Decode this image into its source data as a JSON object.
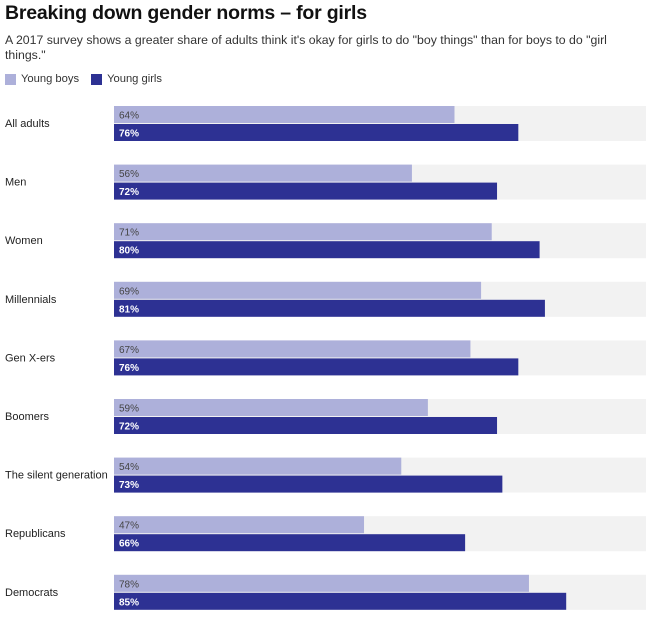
{
  "title": "Breaking down gender norms – for girls",
  "subtitle": "A 2017 survey shows a greater share of adults think it's okay for girls to do \"boy things\" than for boys to do \"girl things.\"",
  "colors": {
    "young_boys": "#adb0da",
    "young_girls": "#2d3193",
    "track": "#f2f2f2"
  },
  "chart_data": {
    "type": "bar",
    "orientation": "horizontal",
    "unit": "%",
    "xlim": [
      0,
      100
    ],
    "grid": false,
    "legend_position": "top-left",
    "categories": [
      "All adults",
      "Men",
      "Women",
      "Millennials",
      "Gen X-ers",
      "Boomers",
      "The silent generation",
      "Republicans",
      "Democrats"
    ],
    "series": [
      {
        "name": "Young boys",
        "values": [
          64,
          56,
          71,
          69,
          67,
          59,
          54,
          47,
          78
        ],
        "labels": [
          "64%",
          "56%",
          "71%",
          "69%",
          "67%",
          "59%",
          "54%",
          "47%",
          "78%"
        ]
      },
      {
        "name": "Young girls",
        "values": [
          76,
          72,
          80,
          81,
          76,
          72,
          73,
          66,
          85
        ],
        "labels": [
          "76%",
          "72%",
          "80%",
          "81%",
          "76%",
          "72%",
          "73%",
          "66%",
          "85%"
        ]
      }
    ]
  }
}
